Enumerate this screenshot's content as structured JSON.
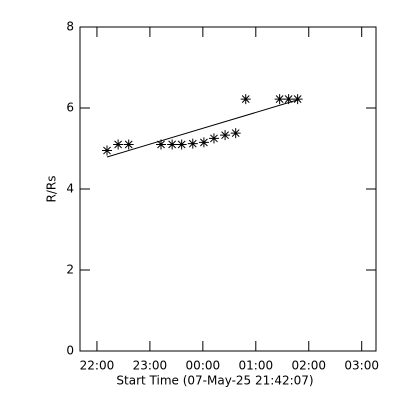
{
  "chart_data": {
    "type": "scatter",
    "xlabel": "Start Time (07-May-25 21:42:07)",
    "ylabel": "R/Rs",
    "x": [
      22.19,
      22.4,
      22.6,
      23.21,
      23.42,
      23.6,
      23.81,
      24.02,
      24.21,
      24.42,
      24.62,
      24.81,
      25.45,
      25.62,
      25.79
    ],
    "values": [
      4.95,
      5.1,
      5.1,
      5.1,
      5.1,
      5.1,
      5.12,
      5.15,
      5.25,
      5.33,
      5.38,
      6.22,
      6.22,
      6.22,
      6.22
    ],
    "fit": {
      "x": [
        22.19,
        25.79
      ],
      "values": [
        4.79,
        6.2
      ]
    },
    "xlim": [
      21.68,
      27.27
    ],
    "ylim": [
      0,
      8
    ],
    "xticks": [
      {
        "value": 22,
        "label": "22:00"
      },
      {
        "value": 23,
        "label": "23:00"
      },
      {
        "value": 24,
        "label": "00:00"
      },
      {
        "value": 25,
        "label": "01:00"
      },
      {
        "value": 26,
        "label": "02:00"
      },
      {
        "value": 27,
        "label": "03:00"
      }
    ],
    "yticks": [
      0,
      2,
      4,
      6,
      8
    ],
    "color": "#000000"
  }
}
